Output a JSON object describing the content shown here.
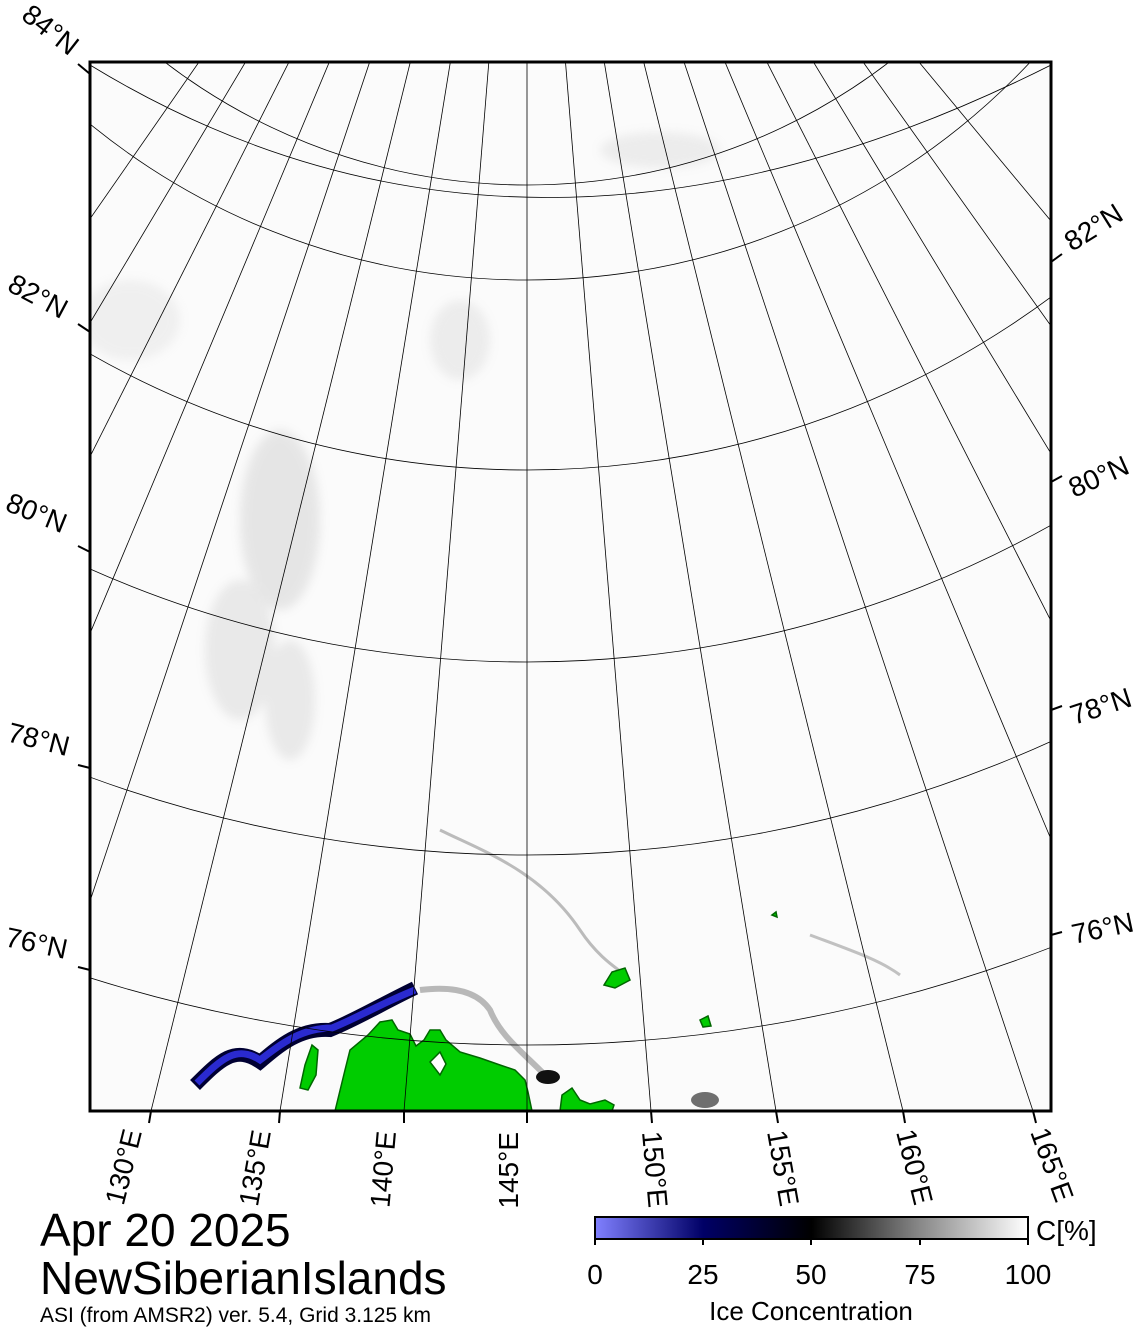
{
  "map": {
    "date": "Apr 20 2025",
    "region": "NewSiberianIslands",
    "product_note": "ASI (from AMSR2) ver. 5.4,  Grid 3.125 km",
    "colors": {
      "land": "#00cc00",
      "open_water_low": "#7a7aff",
      "mid": "#000033",
      "ice_full": "#ffffff",
      "frame": "#000000"
    },
    "latitude_labels": {
      "left": [
        "84°N",
        "82°N",
        "80°N",
        "78°N",
        "76°N"
      ],
      "right": [
        "82°N",
        "80°N",
        "78°N",
        "76°N"
      ]
    },
    "longitude_labels": [
      "130°E",
      "135°E",
      "140°E",
      "145°E",
      "150°E",
      "155°E",
      "160°E",
      "165°E"
    ],
    "legend": {
      "title": "Ice Concentration",
      "unit": "C[%]",
      "ticks": [
        "0",
        "25",
        "50",
        "75",
        "100"
      ]
    }
  }
}
